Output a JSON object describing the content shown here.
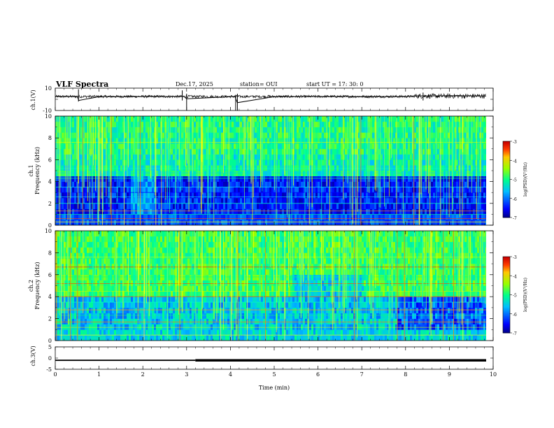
{
  "header": {
    "title": "VLF Spectra",
    "date": "Dec.17, 2025",
    "station": "station= OUI",
    "start": "start  UT  =   17: 30: 0"
  },
  "chart_data": [
    {
      "type": "line",
      "name": "ch1-waveform",
      "ylabel": "ch.1(V)",
      "ylim": [
        -10,
        10
      ],
      "yticks": [
        "10",
        "-10"
      ],
      "x": [
        0,
        0.5,
        0.54,
        1,
        2,
        2.94,
        3.0,
        4.1,
        4.16,
        5,
        6,
        7,
        8,
        8.2,
        9,
        9.84
      ],
      "values": [
        2.5,
        2.5,
        -1.0,
        2.4,
        2.5,
        2.5,
        0.5,
        2.5,
        -3.0,
        2.4,
        2.5,
        2.4,
        2.5,
        3.0,
        3.2,
        3.0
      ],
      "noise_amplitude_v": 1.2
    },
    {
      "type": "heatmap",
      "name": "ch1-spectrogram",
      "ylabel": "ch.1\nFrequency (kHz)",
      "xlim": [
        0,
        9.84
      ],
      "ylim": [
        0,
        10
      ],
      "yticks": [
        "0",
        "2",
        "4",
        "6",
        "8",
        "10"
      ],
      "colorbar": {
        "label": "log(PSD)(V²/Hz)",
        "range": [
          -7,
          -3
        ],
        "ticks": [
          "-3",
          "-4",
          "-5",
          "-6",
          "-7"
        ]
      }
    },
    {
      "type": "heatmap",
      "name": "ch2-spectrogram",
      "ylabel": "ch.2\nFrequency (kHz)",
      "xlim": [
        0,
        9.84
      ],
      "ylim": [
        0,
        10
      ],
      "yticks": [
        "0",
        "2",
        "4",
        "6",
        "8",
        "10"
      ],
      "colorbar": {
        "label": "log(PSD)(V²/Hz)",
        "range": [
          -7,
          -3
        ],
        "ticks": [
          "-3",
          "-4",
          "-5",
          "-6",
          "-7"
        ]
      }
    },
    {
      "type": "line",
      "name": "ch3-waveform",
      "ylabel": "ch.3(V)",
      "ylim": [
        -5,
        5
      ],
      "yticks": [
        "5",
        "0",
        "-5"
      ],
      "x": [
        0,
        3.2,
        3.2,
        9.84
      ],
      "values": [
        -1.0,
        -1.0,
        -1.0,
        -1.0
      ],
      "xlabel": "Time (min)",
      "xlim": [
        0,
        10
      ],
      "xticks": [
        "0",
        "1",
        "2",
        "3",
        "4",
        "5",
        "6",
        "7",
        "8",
        "9",
        "10"
      ]
    }
  ],
  "colors": {
    "axes": "#000000",
    "colormap": [
      "#000080",
      "#0000ff",
      "#00c0ff",
      "#00ff80",
      "#c0ff00",
      "#ff8000",
      "#d00000",
      "#ffffff"
    ]
  }
}
